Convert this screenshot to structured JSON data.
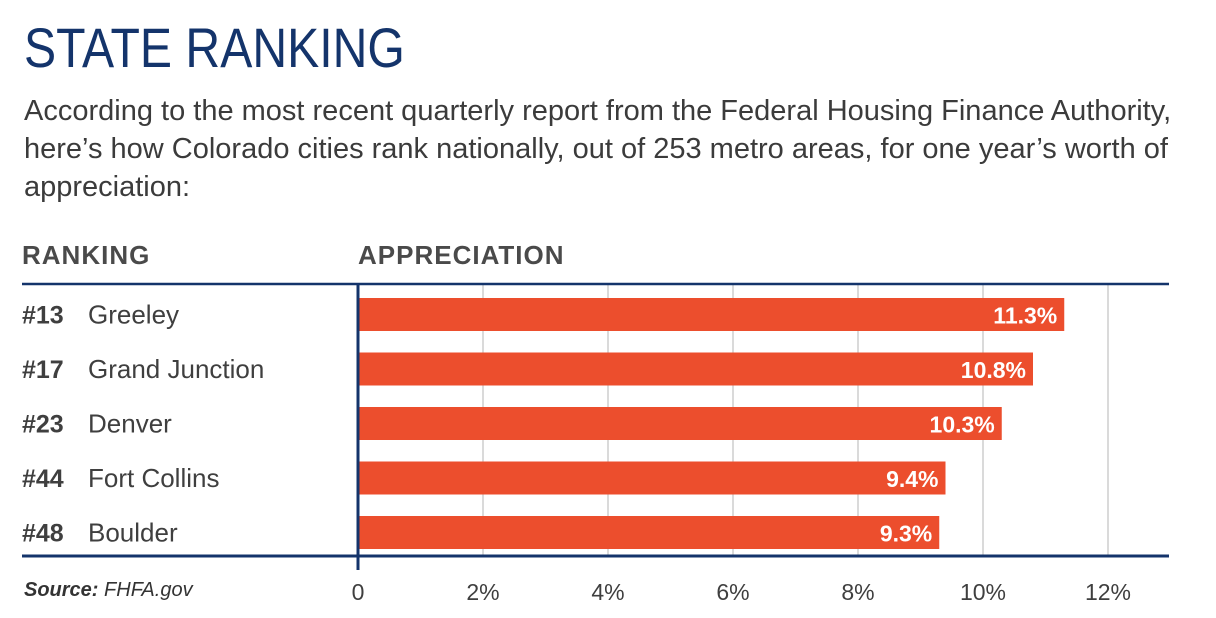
{
  "header": {
    "title": "STATE RANKING",
    "subtitle": "According to the most recent quarterly report from the Federal Housing Finance Authority, here’s how Colorado cities rank nationally, out of 253 metro areas, for one year’s worth of appreciation:"
  },
  "columns": {
    "ranking": "RANKING",
    "appreciation": "APPRECIATION"
  },
  "source": {
    "label": "Source:",
    "value": "FHFA.gov"
  },
  "colors": {
    "bar": "#ec4e2d",
    "rule": "#14346b",
    "grid": "#b5b5b5",
    "title": "#14346b"
  },
  "chart_data": {
    "type": "bar",
    "orientation": "horizontal",
    "categories": [
      "Greeley",
      "Grand Junction",
      "Denver",
      "Fort Collins",
      "Boulder"
    ],
    "ranks": [
      "#13",
      "#17",
      "#23",
      "#44",
      "#48"
    ],
    "values": [
      11.3,
      10.8,
      10.3,
      9.4,
      9.3
    ],
    "value_labels": [
      "11.3%",
      "10.8%",
      "10.3%",
      "9.4%",
      "9.3%"
    ],
    "xlim": [
      0,
      13
    ],
    "xticks": [
      0,
      2,
      4,
      6,
      8,
      10,
      12
    ],
    "xtick_labels": [
      "0",
      "2%",
      "4%",
      "6%",
      "8%",
      "10%",
      "12%"
    ],
    "grid": true
  }
}
